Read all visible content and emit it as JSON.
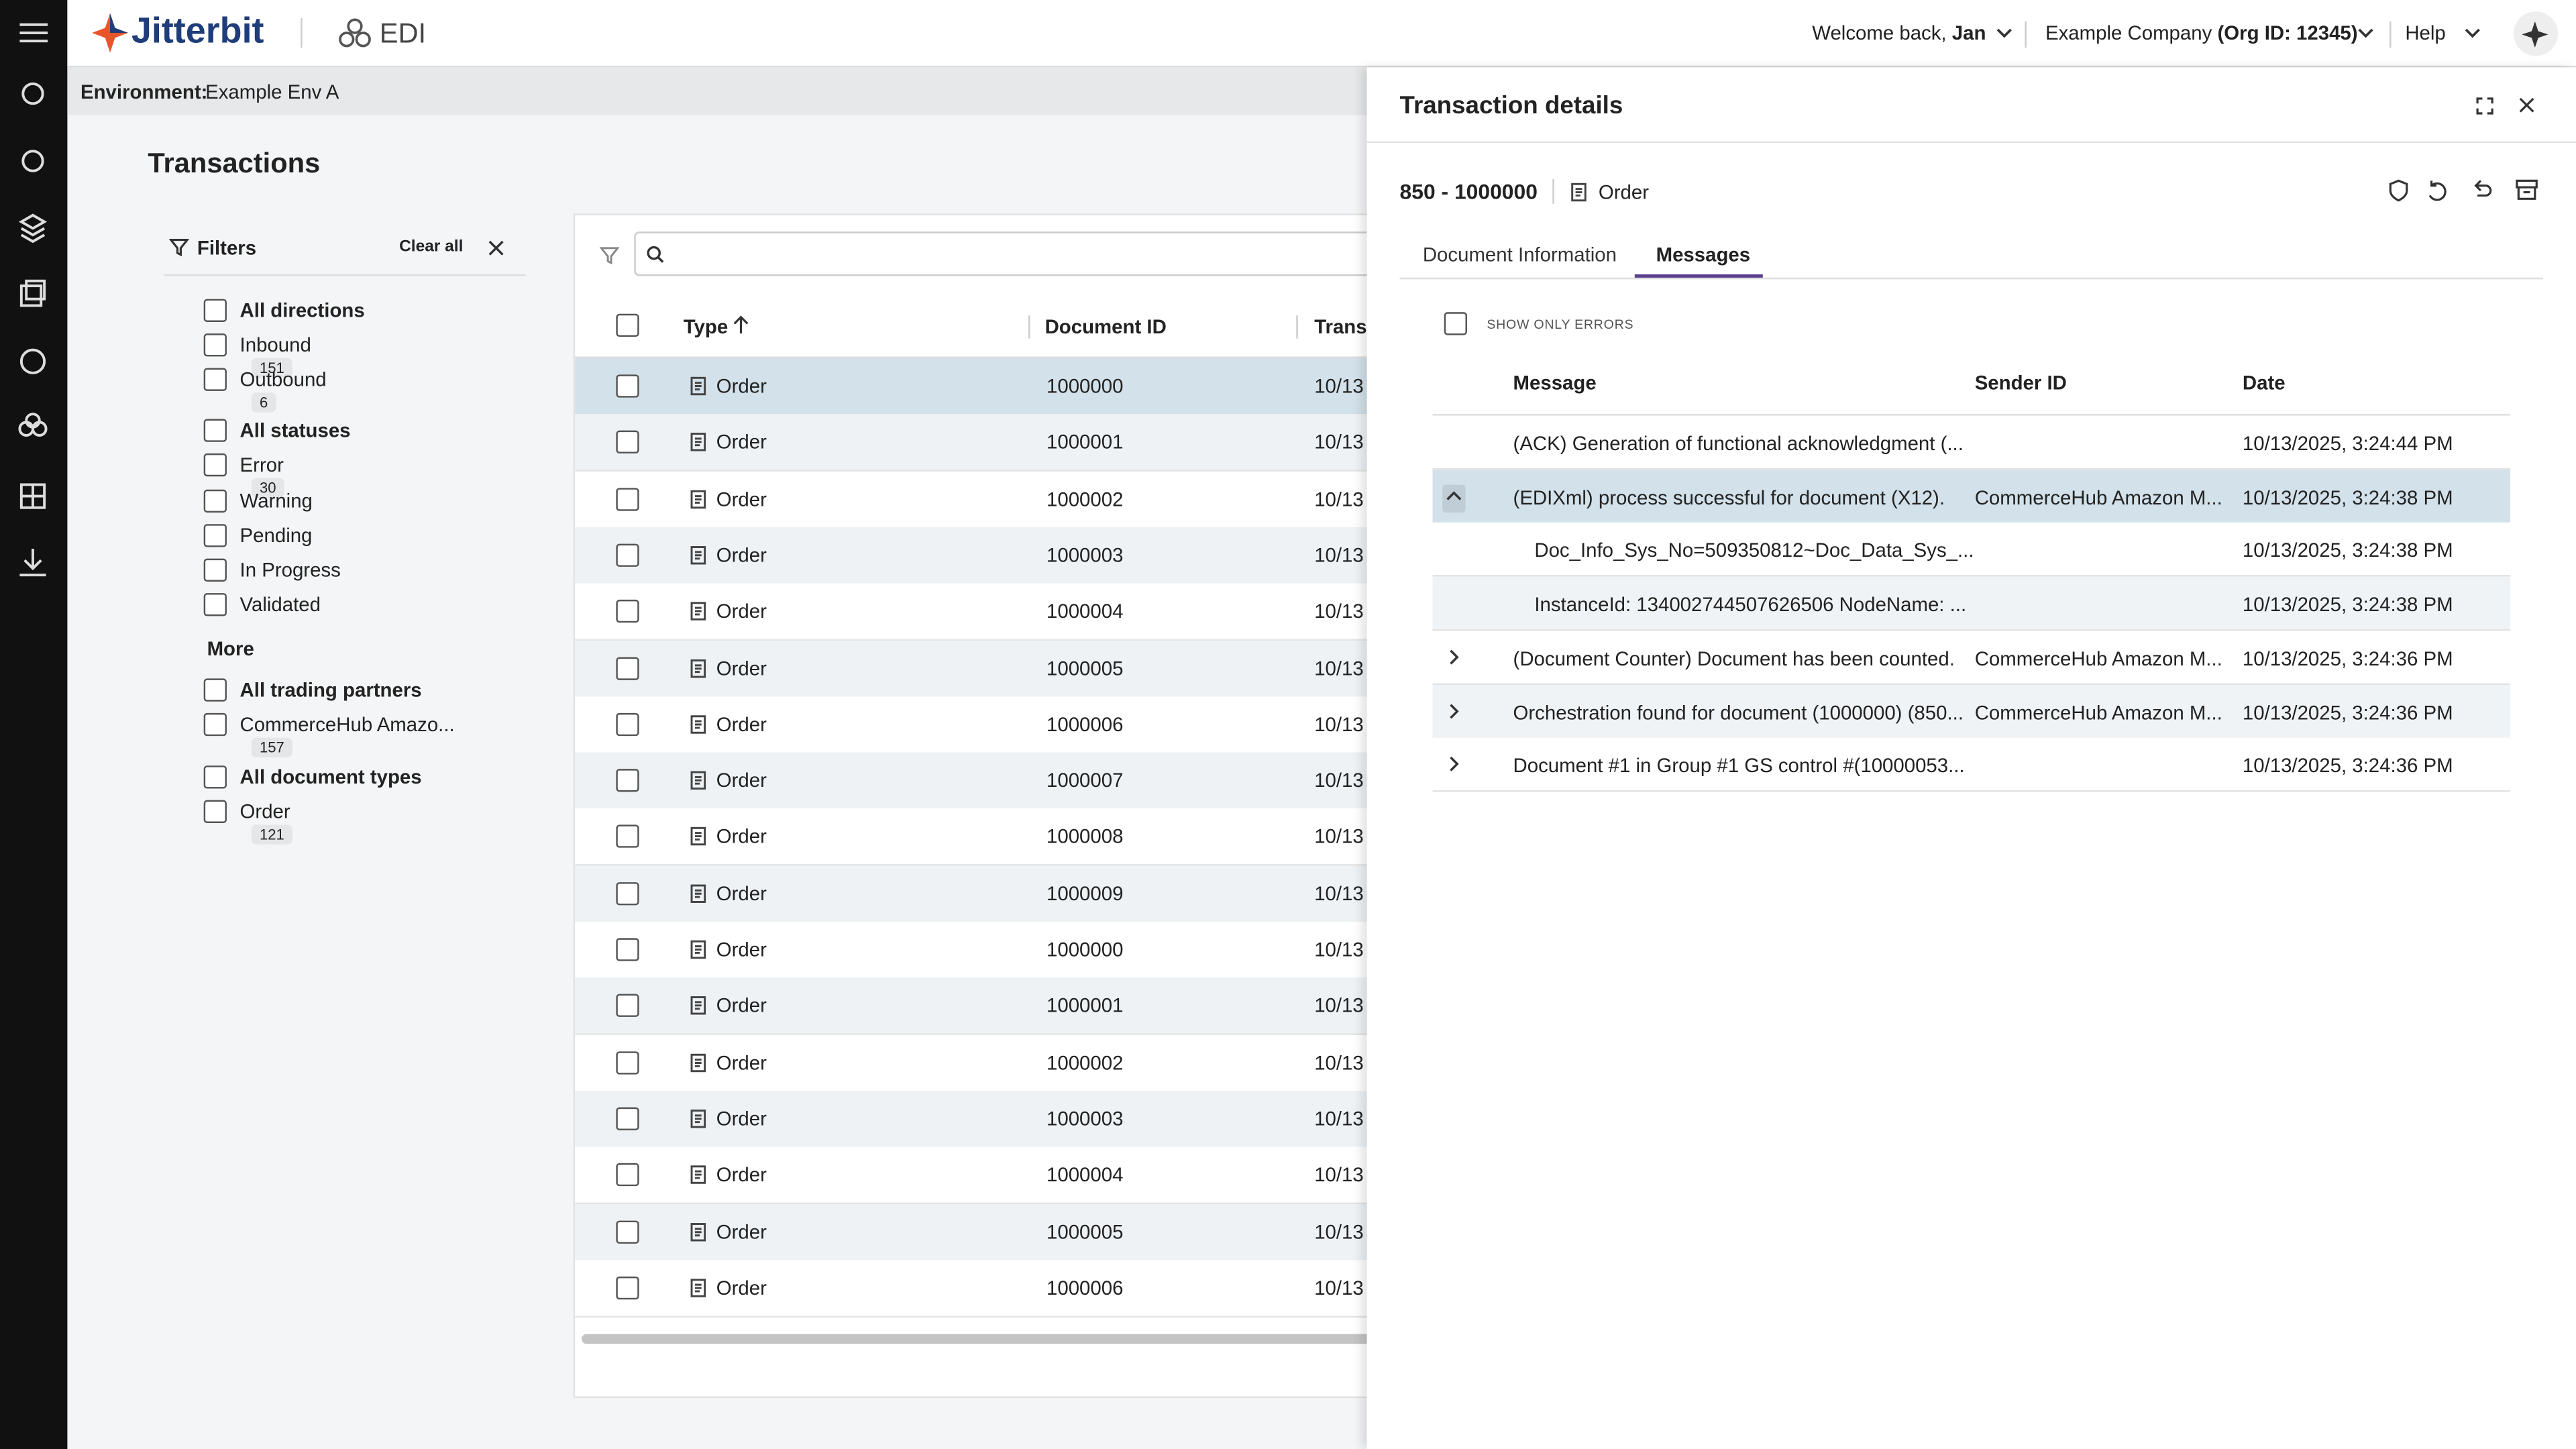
{
  "header": {
    "brand": "Jitterbit",
    "product": "EDI",
    "welcome": "Welcome back,",
    "user": "Jan",
    "company": "Example Company",
    "org": "(Org ID: 12345)",
    "help": "Help"
  },
  "environment": {
    "label": "Environment:",
    "value": "Example Env A"
  },
  "page_title": "Transactions",
  "filters": {
    "title": "Filters",
    "clear": "Clear all",
    "more": "More",
    "groups": [
      {
        "title": "All directions",
        "options": [
          {
            "label": "Inbound",
            "count": "151"
          },
          {
            "label": "Outbound",
            "count": "6"
          }
        ]
      },
      {
        "title": "All statuses",
        "options": [
          {
            "label": "Error",
            "count": "30"
          },
          {
            "label": "Warning"
          },
          {
            "label": "Pending"
          },
          {
            "label": "In Progress"
          },
          {
            "label": "Validated"
          }
        ]
      },
      {
        "title": "All trading partners",
        "options": [
          {
            "label": "CommerceHub Amazo...",
            "count": "157"
          }
        ]
      },
      {
        "title": "All document types",
        "options": [
          {
            "label": "Order",
            "count": "121"
          }
        ]
      }
    ]
  },
  "table": {
    "headers": [
      "Type",
      "Document ID",
      "Trans"
    ],
    "rows": [
      {
        "type": "Order",
        "id": "1000000",
        "date": "10/13"
      },
      {
        "type": "Order",
        "id": "1000001",
        "date": "10/13"
      },
      {
        "type": "Order",
        "id": "1000002",
        "date": "10/13"
      },
      {
        "type": "Order",
        "id": "1000003",
        "date": "10/13"
      },
      {
        "type": "Order",
        "id": "1000004",
        "date": "10/13"
      },
      {
        "type": "Order",
        "id": "1000005",
        "date": "10/13"
      },
      {
        "type": "Order",
        "id": "1000006",
        "date": "10/13"
      },
      {
        "type": "Order",
        "id": "1000007",
        "date": "10/13"
      },
      {
        "type": "Order",
        "id": "1000008",
        "date": "10/13"
      },
      {
        "type": "Order",
        "id": "1000009",
        "date": "10/13"
      },
      {
        "type": "Order",
        "id": "1000000",
        "date": "10/13"
      },
      {
        "type": "Order",
        "id": "1000001",
        "date": "10/13"
      },
      {
        "type": "Order",
        "id": "1000002",
        "date": "10/13"
      },
      {
        "type": "Order",
        "id": "1000003",
        "date": "10/13"
      },
      {
        "type": "Order",
        "id": "1000004",
        "date": "10/13"
      },
      {
        "type": "Order",
        "id": "1000005",
        "date": "10/13"
      },
      {
        "type": "Order",
        "id": "1000006",
        "date": "10/13"
      }
    ]
  },
  "details": {
    "title": "Transaction details",
    "doc_number": "850 - 1000000",
    "doc_type": "Order",
    "tabs": [
      "Document Information",
      "Messages"
    ],
    "active_tab": 1,
    "show_errors": "SHOW ONLY ERRORS",
    "columns": [
      "Message",
      "Sender ID",
      "Date"
    ],
    "messages": [
      {
        "message": "(ACK) Generation of functional acknowledgment (...",
        "date": "10/13/2025, 3:24:44 PM",
        "expandable": false
      },
      {
        "message": "(EDIXml) process successful for document (X12).",
        "sender": "CommerceHub Amazon M...",
        "date": "10/13/2025, 3:24:38 PM",
        "expandable": true,
        "expanded": true,
        "children": [
          {
            "message": "Doc_Info_Sys_No=509350812~Doc_Data_Sys_...",
            "date": "10/13/2025, 3:24:38 PM"
          },
          {
            "message": "InstanceId: 134002744507626506 NodeName: ...",
            "date": "10/13/2025, 3:24:38 PM"
          }
        ]
      },
      {
        "message": "(Document Counter) Document has been counted.",
        "sender": "CommerceHub Amazon M...",
        "date": "10/13/2025, 3:24:36 PM",
        "expandable": true,
        "expanded": false
      },
      {
        "message": "Orchestration found for document (1000000) (850...",
        "sender": "CommerceHub Amazon M...",
        "date": "10/13/2025, 3:24:36 PM",
        "expandable": true,
        "expanded": false
      },
      {
        "message": "Document #1 in Group #1 GS control #(10000053...",
        "date": "10/13/2025, 3:24:36 PM",
        "expandable": true,
        "expanded": false
      }
    ]
  }
}
